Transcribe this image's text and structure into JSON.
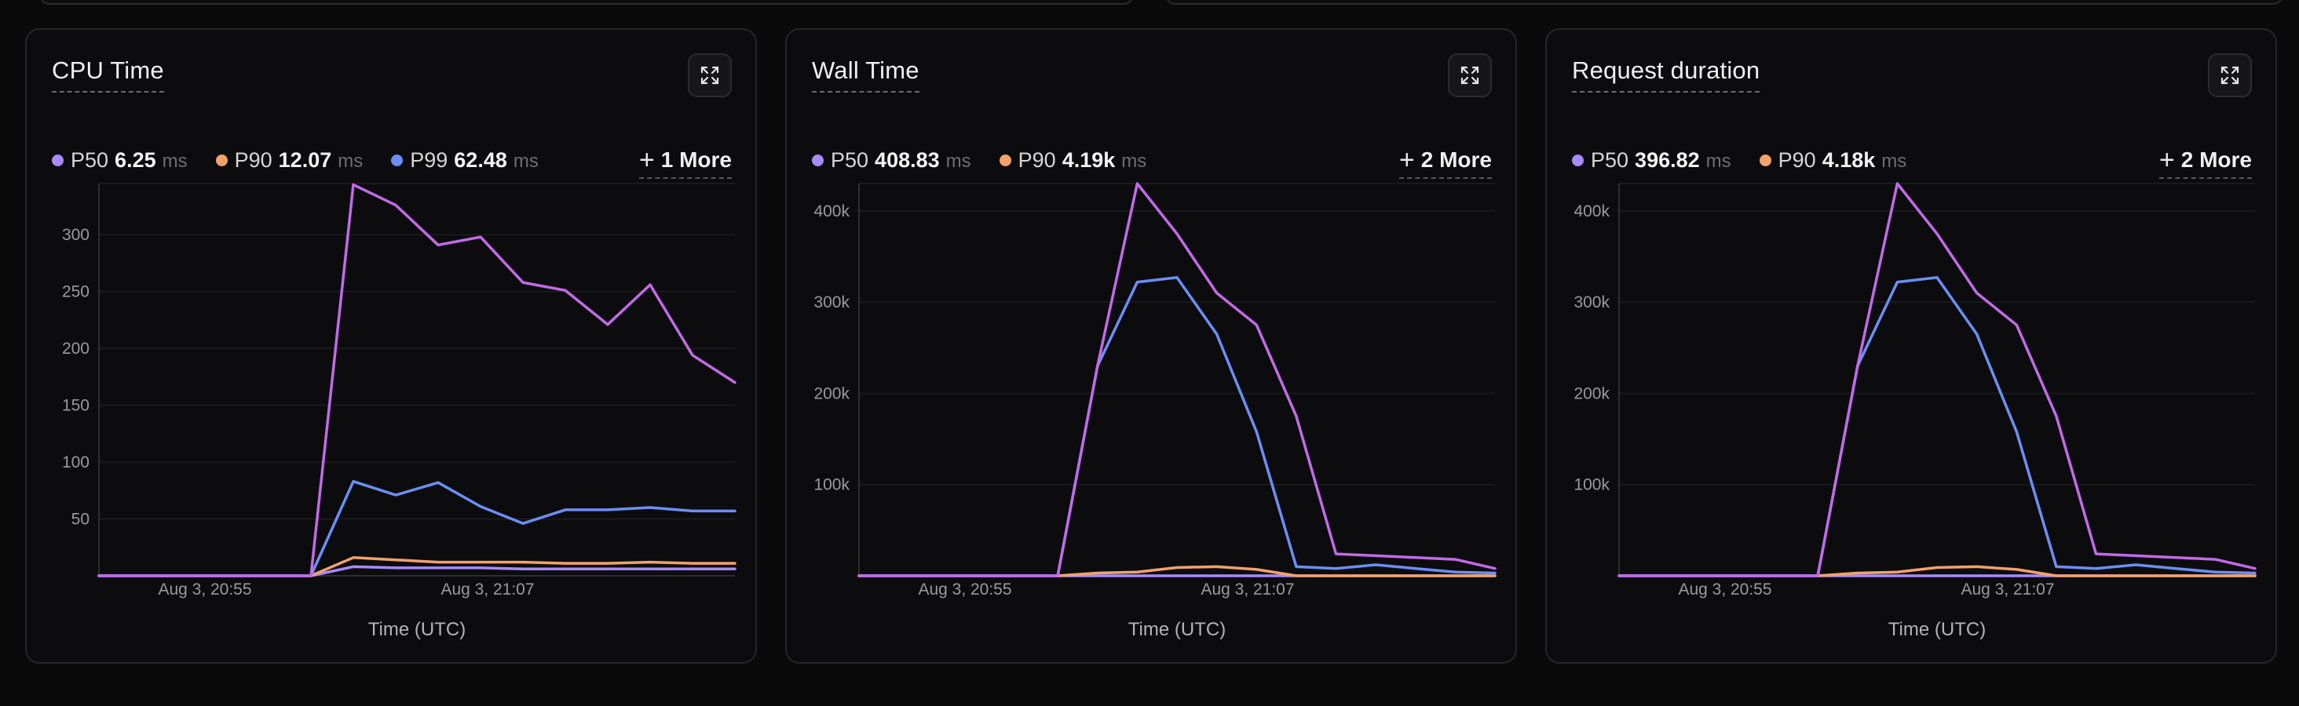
{
  "colors": {
    "p50": "#a78bfa",
    "p90": "#f4a26a",
    "p99": "#6b8ff5",
    "p999": "#c26ae8",
    "grid": "#1e1e22",
    "axis": "#3a3a3e"
  },
  "expand_icon": "expand-icon",
  "more_icon": "plus-icon",
  "chart_data": [
    {
      "type": "line",
      "title": "CPU Time",
      "xlabel": "Time (UTC)",
      "ylabel": "",
      "ylim": [
        0,
        345
      ],
      "yticks": [
        50,
        100,
        150,
        200,
        250,
        300
      ],
      "ytick_labels": [
        "50",
        "100",
        "150",
        "200",
        "250",
        "300"
      ],
      "xtick_labels": [
        {
          "label": "Aug 3, 20:55",
          "index": 3
        },
        {
          "label": "Aug 3, 21:07",
          "index": 11
        }
      ],
      "legend": [
        {
          "name": "P50",
          "value": "6.25",
          "unit": "ms",
          "color": "#a78bfa"
        },
        {
          "name": "P90",
          "value": "12.07",
          "unit": "ms",
          "color": "#f4a26a"
        },
        {
          "name": "P99",
          "value": "62.48",
          "unit": "ms",
          "color": "#6b8ff5"
        }
      ],
      "more_label": "1 More",
      "series": [
        {
          "values": [
            0,
            0,
            0,
            0,
            0,
            0,
            8,
            7,
            7,
            7,
            6,
            6,
            6,
            6,
            6,
            6
          ],
          "color": "#a78bfa"
        },
        {
          "values": [
            0,
            0,
            0,
            0,
            0,
            0,
            16,
            14,
            12,
            12,
            12,
            11,
            11,
            12,
            11,
            11
          ],
          "color": "#f4a26a"
        },
        {
          "values": [
            0,
            0,
            0,
            0,
            0,
            0,
            83,
            71,
            82,
            61,
            46,
            58,
            58,
            60,
            57,
            57
          ],
          "color": "#6b8ff5"
        },
        {
          "values": [
            0,
            0,
            0,
            0,
            0,
            0,
            344,
            326,
            291,
            298,
            258,
            251,
            221,
            256,
            194,
            170
          ],
          "color": "#c26ae8"
        }
      ]
    },
    {
      "type": "line",
      "title": "Wall Time",
      "xlabel": "Time (UTC)",
      "ylabel": "",
      "ylim": [
        0,
        430000
      ],
      "yticks": [
        100000,
        200000,
        300000,
        400000
      ],
      "ytick_labels": [
        "100k",
        "200k",
        "300k",
        "400k"
      ],
      "xtick_labels": [
        {
          "label": "Aug 3, 20:55",
          "index": 3
        },
        {
          "label": "Aug 3, 21:07",
          "index": 11
        }
      ],
      "legend": [
        {
          "name": "P50",
          "value": "408.83",
          "unit": "ms",
          "color": "#a78bfa"
        },
        {
          "name": "P90",
          "value": "4.19k",
          "unit": "ms",
          "color": "#f4a26a"
        }
      ],
      "more_label": "2 More",
      "series": [
        {
          "values": [
            0,
            0,
            0,
            0,
            0,
            0,
            0,
            0,
            0,
            0,
            0,
            0,
            0,
            0,
            0,
            0,
            0
          ],
          "color": "#a78bfa"
        },
        {
          "values": [
            0,
            0,
            0,
            0,
            0,
            0,
            3000,
            4000,
            9000,
            10000,
            7000,
            0,
            0,
            0,
            0,
            0,
            0
          ],
          "color": "#f4a26a"
        },
        {
          "values": [
            0,
            0,
            0,
            0,
            0,
            0,
            230000,
            322000,
            327000,
            265000,
            158000,
            10000,
            8000,
            12000,
            8000,
            4000,
            3000
          ],
          "color": "#6b8ff5"
        },
        {
          "values": [
            0,
            0,
            0,
            0,
            0,
            0,
            230000,
            430000,
            375000,
            310000,
            275000,
            175000,
            24000,
            22000,
            20000,
            18000,
            8000
          ],
          "color": "#c26ae8"
        }
      ]
    },
    {
      "type": "line",
      "title": "Request duration",
      "xlabel": "Time (UTC)",
      "ylabel": "",
      "ylim": [
        0,
        430000
      ],
      "yticks": [
        100000,
        200000,
        300000,
        400000
      ],
      "ytick_labels": [
        "100k",
        "200k",
        "300k",
        "400k"
      ],
      "xtick_labels": [
        {
          "label": "Aug 3, 20:55",
          "index": 3
        },
        {
          "label": "Aug 3, 21:07",
          "index": 11
        }
      ],
      "legend": [
        {
          "name": "P50",
          "value": "396.82",
          "unit": "ms",
          "color": "#a78bfa"
        },
        {
          "name": "P90",
          "value": "4.18k",
          "unit": "ms",
          "color": "#f4a26a"
        }
      ],
      "more_label": "2 More",
      "series": [
        {
          "values": [
            0,
            0,
            0,
            0,
            0,
            0,
            0,
            0,
            0,
            0,
            0,
            0,
            0,
            0,
            0,
            0,
            0
          ],
          "color": "#a78bfa"
        },
        {
          "values": [
            0,
            0,
            0,
            0,
            0,
            0,
            3000,
            4000,
            9000,
            10000,
            7000,
            0,
            0,
            0,
            0,
            0,
            0
          ],
          "color": "#f4a26a"
        },
        {
          "values": [
            0,
            0,
            0,
            0,
            0,
            0,
            230000,
            322000,
            327000,
            265000,
            158000,
            10000,
            8000,
            12000,
            8000,
            4000,
            3000
          ],
          "color": "#6b8ff5"
        },
        {
          "values": [
            0,
            0,
            0,
            0,
            0,
            0,
            230000,
            430000,
            375000,
            310000,
            275000,
            175000,
            24000,
            22000,
            20000,
            18000,
            8000
          ],
          "color": "#c26ae8"
        }
      ]
    }
  ]
}
